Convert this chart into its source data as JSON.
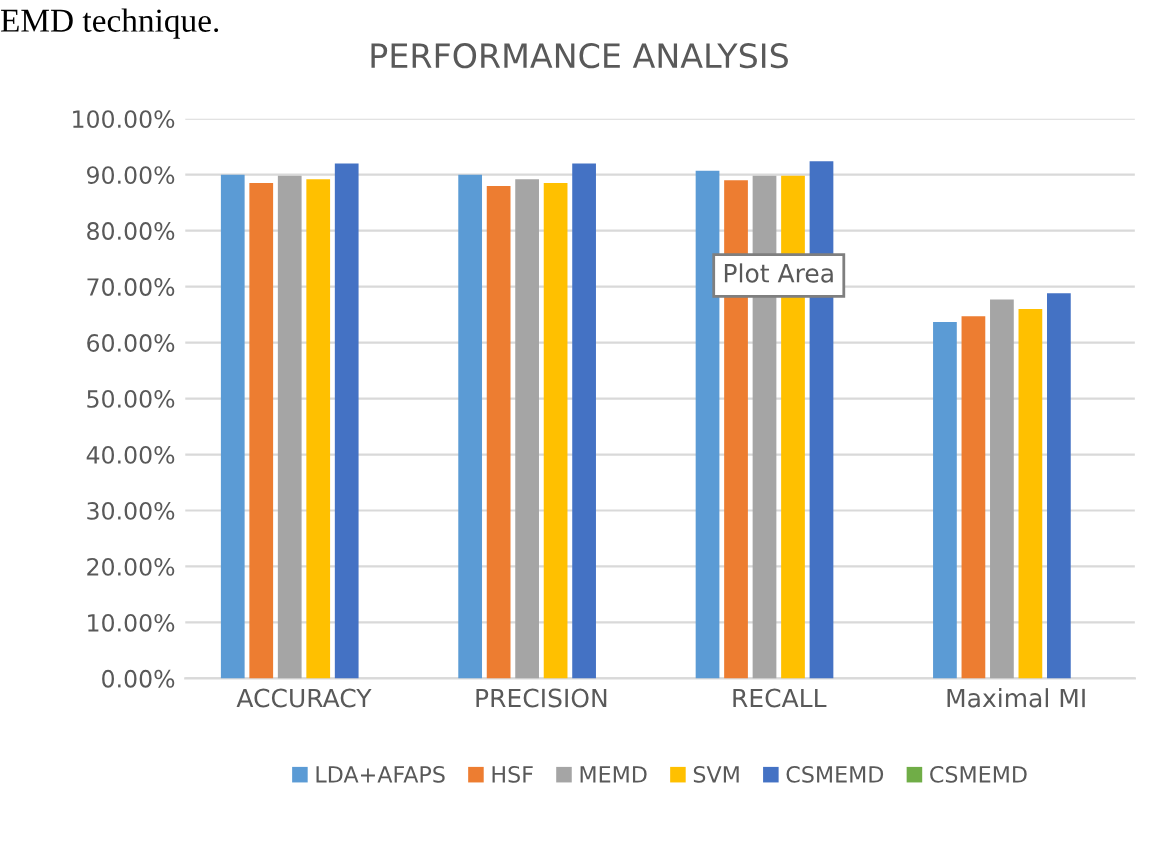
{
  "chart_data": {
    "type": "bar",
    "title": "PERFORMANCE ANALYSIS",
    "categories": [
      "ACCURACY",
      "PRECISION",
      "RECALL",
      "Maximal MI"
    ],
    "series": [
      {
        "name": "LDA+AFAPS",
        "color": "#5b9bd5",
        "values": [
          90,
          90,
          90.7,
          63.7
        ]
      },
      {
        "name": "HSF",
        "color": "#ed7d31",
        "values": [
          88.5,
          88,
          89,
          64.7
        ]
      },
      {
        "name": "MEMD",
        "color": "#a5a5a5",
        "values": [
          89.8,
          89.2,
          89.8,
          67.7
        ]
      },
      {
        "name": "SVM",
        "color": "#ffc000",
        "values": [
          89.2,
          88.5,
          89.8,
          66
        ]
      },
      {
        "name": "CSMEMD",
        "color": "#4472c4",
        "values": [
          92,
          92,
          92.4,
          68.8
        ]
      },
      {
        "name": "CSMEMD",
        "color": "#70ad47",
        "values": [
          null,
          null,
          null,
          null
        ]
      }
    ],
    "ylim": [
      0,
      100
    ],
    "yticks": [
      {
        "value": 0,
        "label": "0.00%"
      },
      {
        "value": 10,
        "label": "10.00%"
      },
      {
        "value": 20,
        "label": "20.00%"
      },
      {
        "value": 30,
        "label": "30.00%"
      },
      {
        "value": 40,
        "label": "40.00%"
      },
      {
        "value": 50,
        "label": "50.00%"
      },
      {
        "value": 60,
        "label": "60.00%"
      },
      {
        "value": 70,
        "label": "70.00%"
      },
      {
        "value": 80,
        "label": "80.00%"
      },
      {
        "value": 90,
        "label": "90.00%"
      },
      {
        "value": 100,
        "label": "100.00%"
      }
    ],
    "grid": "y",
    "legend": "bottom",
    "annotations": [
      "EMD technique.",
      "Plot Area"
    ]
  }
}
